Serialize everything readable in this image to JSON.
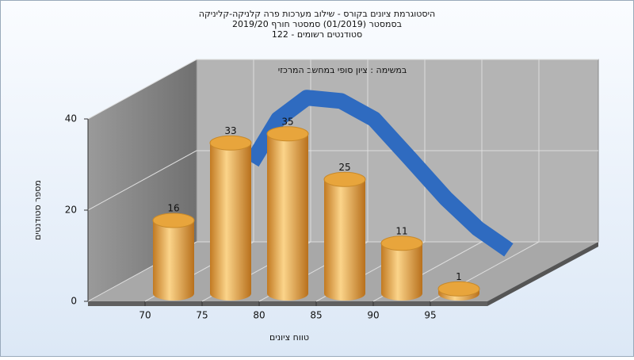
{
  "chart_data": {
    "type": "histogram3d",
    "title": [
      "היסטוגרמת ציונים בקורס - שילוב מערכות פרה קלניקה-קליניקה",
      "בסמסטר  (01/2019)  סמסטר חורף 2019/20",
      "סטודנטים רשומים - 122"
    ],
    "subtitle": "במשימה : ציון סופי במחשב המרכזי",
    "x_label": "טווח ציונים",
    "y_label": "מספר סטודנטים",
    "bins": [
      70,
      75,
      80,
      85,
      90,
      95,
      100
    ],
    "values": [
      16,
      33,
      35,
      25,
      11,
      1
    ],
    "color": "#e8a53c",
    "xlim": [
      65,
      100
    ],
    "xticks": [
      70,
      75,
      80,
      85,
      90,
      95
    ],
    "ylim": [
      0,
      40
    ],
    "yticks": [
      0,
      20,
      40
    ],
    "grid": true,
    "fit_curve": {
      "color": "#2f6bc0",
      "x": [
        75.2,
        77.5,
        80,
        83,
        85.9,
        89,
        92.2,
        95,
        97.7
      ],
      "values": [
        23.5,
        33,
        37.7,
        37,
        33,
        24.5,
        15.6,
        9,
        4.3
      ]
    }
  }
}
